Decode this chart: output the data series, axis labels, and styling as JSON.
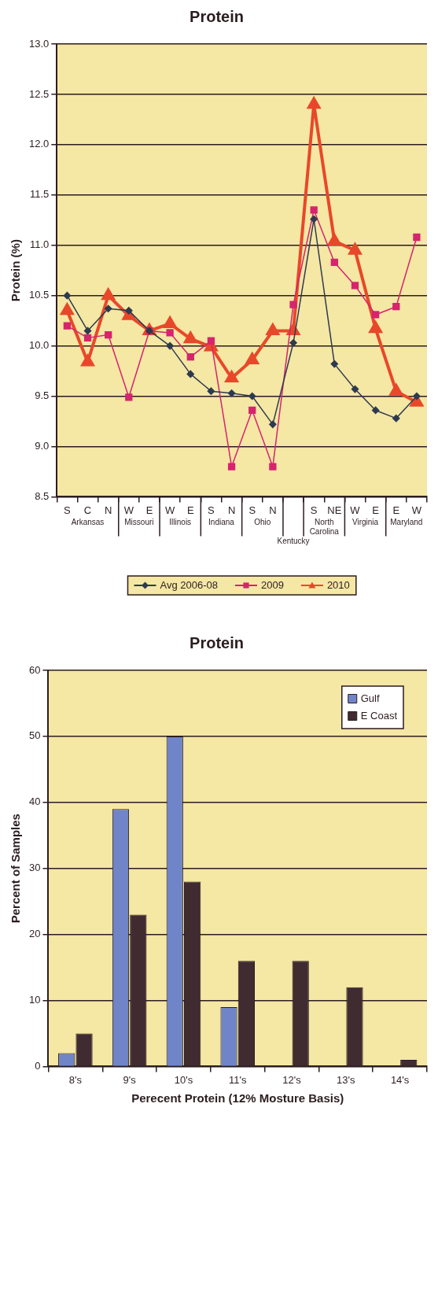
{
  "chart_data": [
    {
      "type": "line",
      "title": "Protein",
      "ylabel": "Protein (%)",
      "categories": [
        "S",
        "C",
        "N",
        "W",
        "E",
        "W",
        "E",
        "S",
        "N",
        "S",
        "N",
        null,
        "S",
        "NE",
        "W",
        "E",
        "E",
        "W"
      ],
      "annotations": [
        "Arkansas",
        "Missouri",
        "Illinois",
        "Indiana",
        "Ohio",
        "Kentucky",
        "North Carolina",
        "Virginia",
        "Maryland"
      ],
      "ylim": [
        8.5,
        13
      ],
      "yticks": [
        {
          "value": 8.5,
          "label": "8.5"
        },
        {
          "value": 9,
          "label": "9.0"
        },
        {
          "value": 9.5,
          "label": "9.5"
        },
        {
          "value": 10,
          "label": "10.0"
        },
        {
          "value": 10.5,
          "label": "10.5"
        },
        {
          "value": 11,
          "label": "11.0"
        },
        {
          "value": 11.5,
          "label": "11.5"
        },
        {
          "value": 12,
          "label": "12.0"
        },
        {
          "value": 12.5,
          "label": "12.5"
        },
        {
          "value": 13,
          "label": "13.0"
        }
      ],
      "grid": "y",
      "legend": "bottom",
      "series": [
        {
          "name": "Avg 2006-08",
          "color": "#2e3a4f",
          "marker": "diamond",
          "values": [
            10.5,
            10.15,
            10.37,
            10.35,
            10.15,
            10.0,
            9.72,
            9.55,
            9.53,
            9.5,
            9.22,
            10.03,
            11.26,
            9.82,
            9.57,
            9.36,
            9.28,
            9.5
          ]
        },
        {
          "name": "2009",
          "color": "#d6246e",
          "marker": "square",
          "values": [
            10.2,
            10.08,
            10.11,
            9.49,
            10.15,
            10.13,
            9.89,
            10.05,
            8.8,
            9.36,
            8.8,
            10.41,
            11.35,
            10.83,
            10.6,
            10.31,
            10.39,
            11.08
          ]
        },
        {
          "name": "2010",
          "color": "#e8482a",
          "marker": "triangle",
          "values": [
            10.35,
            9.84,
            10.5,
            10.3,
            10.15,
            10.22,
            10.07,
            9.99,
            9.68,
            9.86,
            10.15,
            10.15,
            12.4,
            11.04,
            10.95,
            10.17,
            9.55,
            9.44
          ]
        }
      ]
    },
    {
      "type": "bar",
      "title": "Protein",
      "xlabel": "Perecent Protein (12% Mosture Basis)",
      "ylabel": "Percent of Samples",
      "categories": [
        "8's",
        "9's",
        "10's",
        "11's",
        "12's",
        "13's",
        "14's"
      ],
      "ylim": [
        0,
        60
      ],
      "yticks": [
        0,
        10,
        20,
        30,
        40,
        50,
        60
      ],
      "grid": "y",
      "legend": "top right",
      "series": [
        {
          "name": "Gulf",
          "color": "#6f85c8",
          "values": [
            2,
            39,
            50,
            9,
            0,
            0,
            0
          ]
        },
        {
          "name": "E Coast",
          "color": "#3f2b30",
          "values": [
            5,
            23,
            28,
            16,
            16,
            12,
            1
          ]
        }
      ]
    }
  ]
}
